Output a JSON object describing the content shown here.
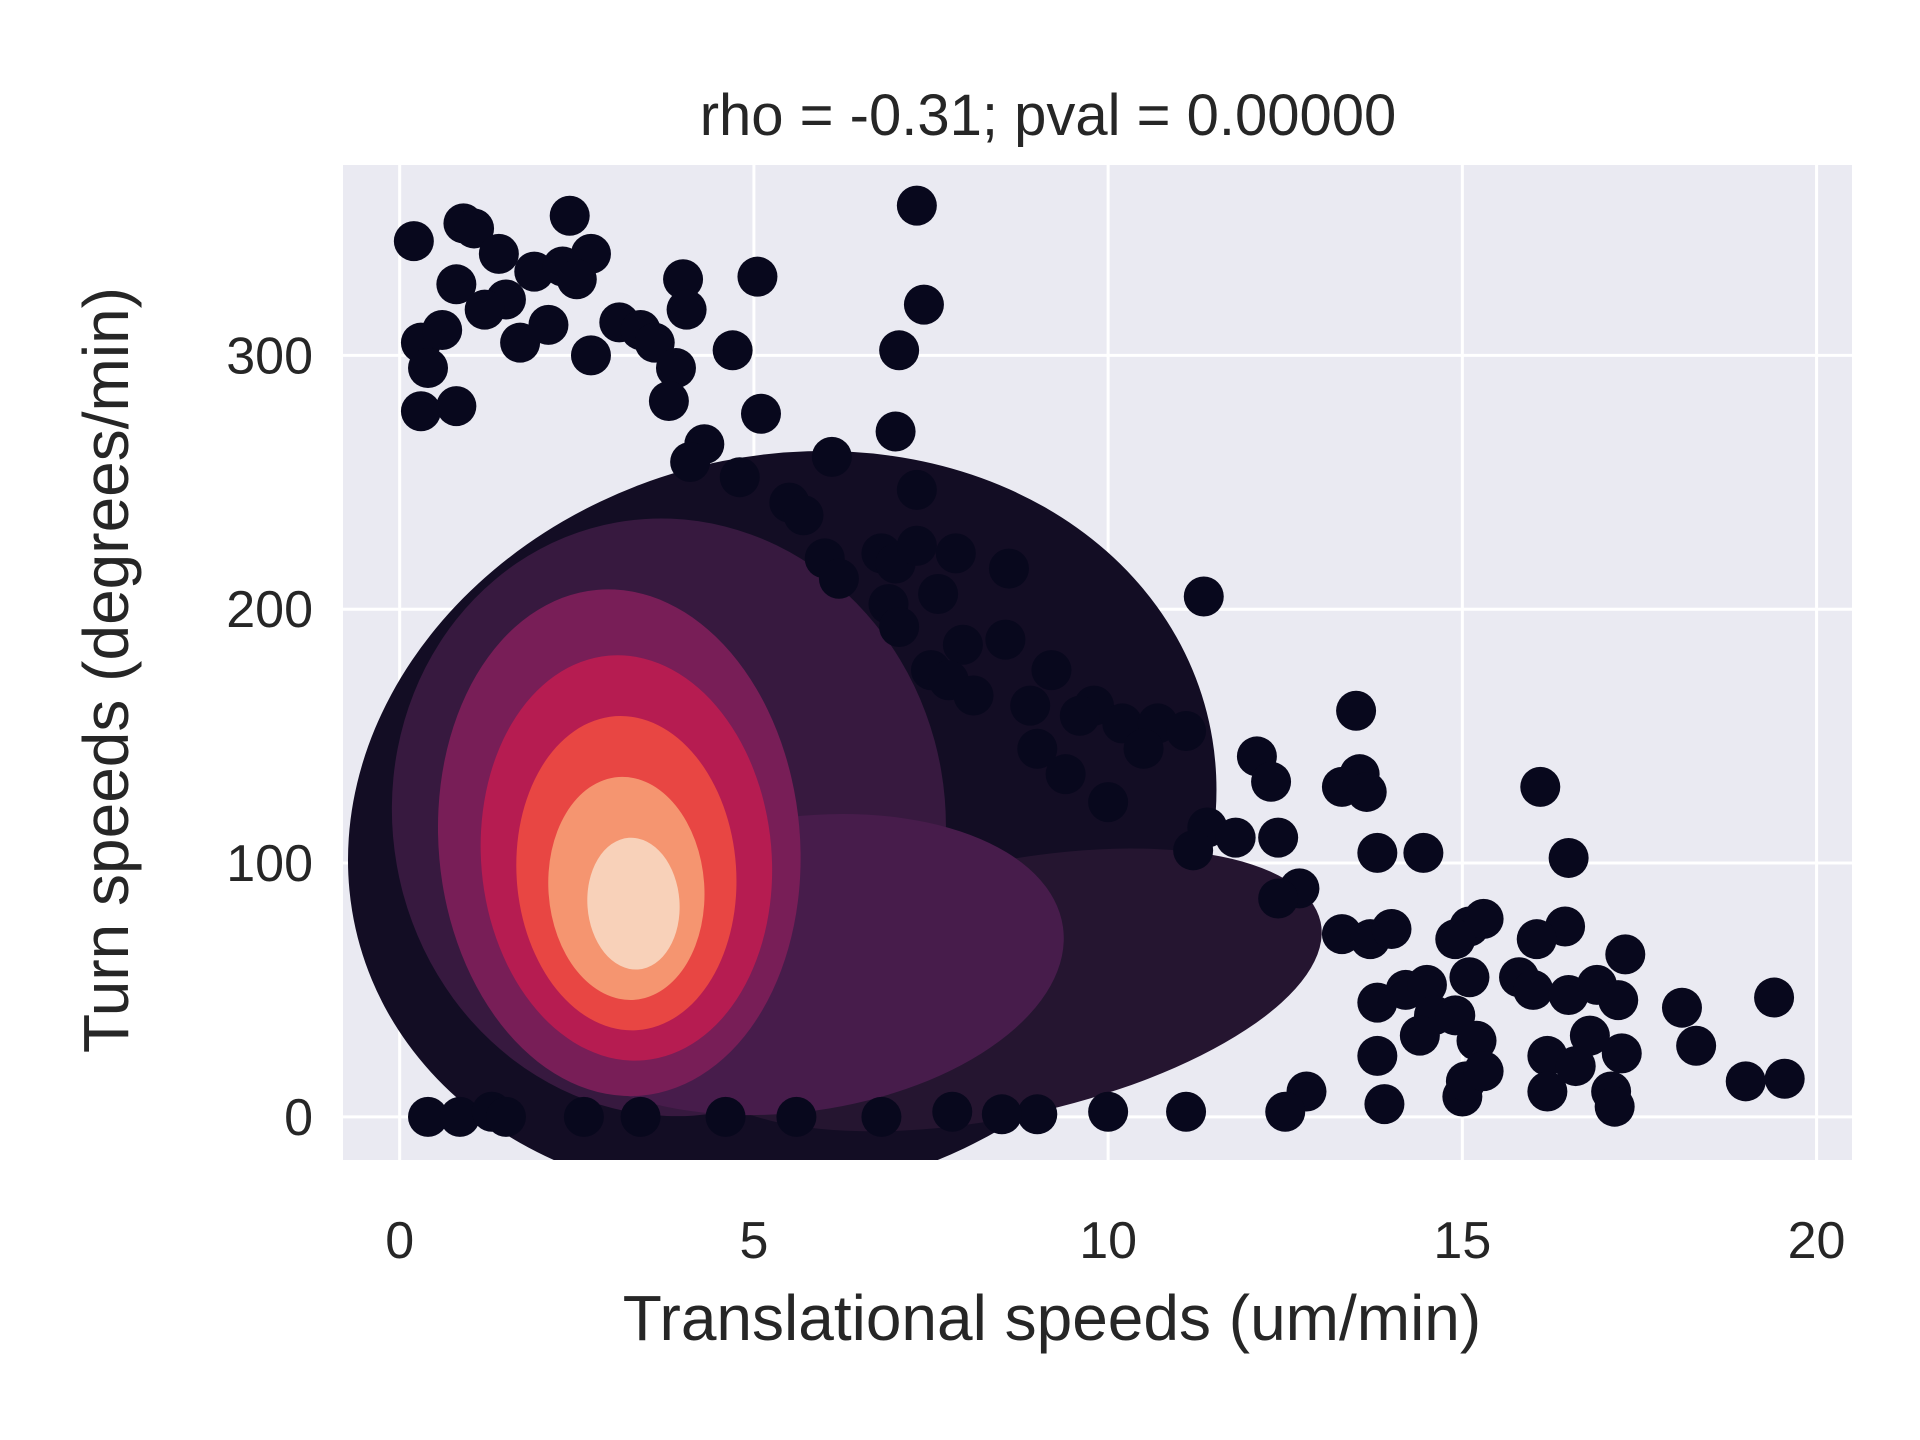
{
  "chart_data": {
    "type": "scatter",
    "title": "rho = -0.31; pval = 0.00000",
    "xlabel": "Translational speeds (um/min)",
    "ylabel": "Turn speeds (degrees/min)",
    "xlim": [
      -0.8,
      20.5
    ],
    "ylim": [
      -17,
      375
    ],
    "xticks": [
      0,
      5,
      10,
      15,
      20
    ],
    "xtick_labels": [
      "0",
      "5",
      "10",
      "15",
      "20"
    ],
    "yticks": [
      0,
      100,
      200,
      300
    ],
    "ytick_labels": [
      "0",
      "100",
      "200",
      "300"
    ],
    "grid": true,
    "colormap": "rocket (point density: dark = low, light = high)",
    "colors": {
      "background": "#EAEAF2",
      "grid": "#FFFFFF",
      "low_density": "#03051A",
      "high_density": "#FAEBDD"
    },
    "series": [
      {
        "points": [
          [
            0.2,
            345
          ],
          [
            0.9,
            352
          ],
          [
            1.05,
            350
          ],
          [
            1.4,
            340
          ],
          [
            2.4,
            355
          ],
          [
            2.7,
            340
          ],
          [
            1.9,
            333
          ],
          [
            2.3,
            335
          ],
          [
            2.5,
            330
          ],
          [
            0.8,
            328
          ],
          [
            1.5,
            322
          ],
          [
            0.3,
            305
          ],
          [
            0.6,
            310
          ],
          [
            0.4,
            295
          ],
          [
            1.2,
            318
          ],
          [
            1.7,
            305
          ],
          [
            2.1,
            312
          ],
          [
            3.1,
            313
          ],
          [
            3.4,
            310
          ],
          [
            3.6,
            305
          ],
          [
            2.7,
            300
          ],
          [
            3.9,
            295
          ],
          [
            3.8,
            282
          ],
          [
            0.3,
            278
          ],
          [
            0.8,
            280
          ],
          [
            4.0,
            330
          ],
          [
            4.05,
            318
          ],
          [
            5.05,
            331
          ],
          [
            4.7,
            302
          ],
          [
            5.1,
            277
          ],
          [
            7.3,
            359
          ],
          [
            7.4,
            320
          ],
          [
            7.05,
            302
          ],
          [
            6.1,
            260
          ],
          [
            7.0,
            270
          ],
          [
            4.3,
            265
          ],
          [
            4.1,
            258
          ],
          [
            4.8,
            252
          ],
          [
            7.3,
            247
          ],
          [
            5.5,
            242
          ],
          [
            5.7,
            237
          ],
          [
            6.0,
            220
          ],
          [
            6.2,
            212
          ],
          [
            6.8,
            222
          ],
          [
            7.0,
            218
          ],
          [
            7.3,
            225
          ],
          [
            7.85,
            222
          ],
          [
            8.6,
            216
          ],
          [
            7.6,
            206
          ],
          [
            6.9,
            202
          ],
          [
            7.05,
            193
          ],
          [
            7.95,
            186
          ],
          [
            8.55,
            188
          ],
          [
            9.2,
            176
          ],
          [
            7.5,
            176
          ],
          [
            7.75,
            172
          ],
          [
            8.1,
            166
          ],
          [
            8.9,
            162
          ],
          [
            9.8,
            162
          ],
          [
            9.6,
            158
          ],
          [
            10.2,
            155
          ],
          [
            10.7,
            155
          ],
          [
            11.1,
            152
          ],
          [
            11.35,
            205
          ],
          [
            10.5,
            145
          ],
          [
            9.0,
            145
          ],
          [
            9.4,
            135
          ],
          [
            10.0,
            124
          ],
          [
            12.1,
            142
          ],
          [
            12.3,
            132
          ],
          [
            13.5,
            160
          ],
          [
            13.55,
            135
          ],
          [
            13.3,
            130
          ],
          [
            13.65,
            128
          ],
          [
            11.4,
            114
          ],
          [
            11.8,
            110
          ],
          [
            12.4,
            110
          ],
          [
            11.2,
            105
          ],
          [
            13.8,
            104
          ],
          [
            14.45,
            104
          ],
          [
            16.1,
            130
          ],
          [
            16.5,
            102
          ],
          [
            12.7,
            90
          ],
          [
            12.4,
            86
          ],
          [
            15.1,
            75
          ],
          [
            15.3,
            78
          ],
          [
            14.9,
            70
          ],
          [
            16.45,
            75
          ],
          [
            16.05,
            70
          ],
          [
            17.3,
            64
          ],
          [
            15.8,
            55
          ],
          [
            15.1,
            55
          ],
          [
            16.0,
            50
          ],
          [
            16.5,
            48
          ],
          [
            16.9,
            52
          ],
          [
            17.2,
            46
          ],
          [
            14.2,
            50
          ],
          [
            14.5,
            52
          ],
          [
            14.6,
            40
          ],
          [
            14.9,
            40
          ],
          [
            14.4,
            32
          ],
          [
            13.8,
            45
          ],
          [
            15.2,
            30
          ],
          [
            13.3,
            72
          ],
          [
            13.7,
            70
          ],
          [
            14.0,
            74
          ],
          [
            18.1,
            43
          ],
          [
            18.3,
            28
          ],
          [
            19.4,
            47
          ],
          [
            19.0,
            14
          ],
          [
            19.55,
            15
          ],
          [
            16.2,
            24
          ],
          [
            16.2,
            10
          ],
          [
            16.8,
            32
          ],
          [
            16.6,
            20
          ],
          [
            17.25,
            25
          ],
          [
            17.1,
            10
          ],
          [
            17.15,
            4
          ],
          [
            15.0,
            8
          ],
          [
            15.05,
            14
          ],
          [
            15.3,
            18
          ],
          [
            13.8,
            24
          ],
          [
            13.9,
            5
          ],
          [
            12.8,
            10
          ],
          [
            12.5,
            2
          ],
          [
            11.1,
            2
          ],
          [
            10.0,
            2
          ],
          [
            9.0,
            1
          ],
          [
            8.5,
            1
          ],
          [
            0.4,
            0
          ],
          [
            0.85,
            0
          ],
          [
            1.3,
            2
          ],
          [
            1.5,
            0
          ],
          [
            2.6,
            0
          ],
          [
            3.4,
            0
          ],
          [
            4.6,
            0
          ],
          [
            5.6,
            0
          ],
          [
            6.8,
            0
          ],
          [
            7.8,
            2
          ]
        ],
        "density_regions": [
          {
            "shape": "ellipse",
            "cx": 5.4,
            "cy": 115,
            "rx": 6.2,
            "ry": 145,
            "rotation_deg": -16,
            "density": 0.06
          },
          {
            "shape": "ellipse",
            "cx": 8.5,
            "cy": 50,
            "rx": 4.6,
            "ry": 50,
            "rotation_deg": -12,
            "density": 0.13
          },
          {
            "shape": "ellipse",
            "cx": 3.8,
            "cy": 118,
            "rx": 3.9,
            "ry": 118,
            "rotation_deg": -10,
            "density": 0.2
          },
          {
            "shape": "ellipse",
            "cx": 5.6,
            "cy": 60,
            "rx": 3.8,
            "ry": 58,
            "rotation_deg": -8,
            "density": 0.26
          },
          {
            "shape": "ellipse",
            "cx": 3.1,
            "cy": 108,
            "rx": 2.55,
            "ry": 100,
            "rotation_deg": -5,
            "density": 0.4
          },
          {
            "shape": "ellipse",
            "cx": 3.2,
            "cy": 102,
            "rx": 2.05,
            "ry": 80,
            "rotation_deg": -5,
            "density": 0.55
          },
          {
            "shape": "ellipse",
            "cx": 3.2,
            "cy": 96,
            "rx": 1.55,
            "ry": 62,
            "rotation_deg": -4,
            "density": 0.7
          },
          {
            "shape": "ellipse",
            "cx": 3.2,
            "cy": 90,
            "rx": 1.1,
            "ry": 44,
            "rotation_deg": -4,
            "density": 0.84
          },
          {
            "shape": "ellipse",
            "cx": 3.3,
            "cy": 84,
            "rx": 0.65,
            "ry": 26,
            "rotation_deg": -4,
            "density": 0.95
          }
        ]
      }
    ]
  }
}
